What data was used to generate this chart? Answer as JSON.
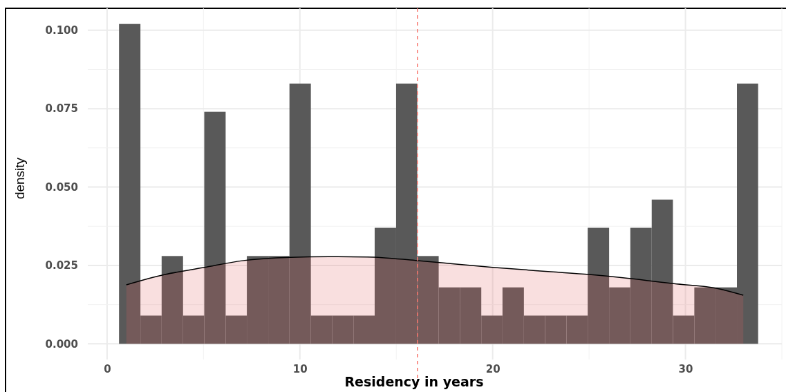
{
  "chart_data": {
    "type": "histogram",
    "xlabel": "Residency in years",
    "ylabel": "density",
    "bins": [
      0.62,
      1.73,
      2.83,
      3.94,
      5.04,
      6.15,
      7.25,
      8.36,
      9.46,
      10.57,
      11.67,
      12.78,
      13.88,
      14.99,
      16.09,
      17.2,
      18.3,
      19.41,
      20.51,
      21.62,
      22.72,
      23.83,
      24.93,
      26.04,
      27.14,
      28.25,
      29.35,
      30.46,
      31.56,
      32.67,
      33.77
    ],
    "values": [
      0.102,
      0.009,
      0.028,
      0.009,
      0.074,
      0.009,
      0.028,
      0.028,
      0.083,
      0.009,
      0.009,
      0.009,
      0.037,
      0.083,
      0.028,
      0.018,
      0.018,
      0.009,
      0.018,
      0.009,
      0.009,
      0.009,
      0.037,
      0.018,
      0.037,
      0.046,
      0.009,
      0.018,
      0.018,
      0.083
    ],
    "color": "#595959",
    "series": [
      {
        "type": "area",
        "color": "#e06060",
        "x": [
          1,
          3,
          5,
          7,
          9.5,
          11.5,
          13.5,
          16,
          18,
          20,
          23,
          25,
          27,
          29.4,
          31.6,
          33
        ],
        "values": [
          0.0188,
          0.0221,
          0.0243,
          0.0265,
          0.0276,
          0.0278,
          0.0277,
          0.0266,
          0.0255,
          0.0244,
          0.023,
          0.0221,
          0.0209,
          0.0192,
          0.0177,
          0.0155
        ]
      }
    ],
    "xlim": [
      -1,
      35
    ],
    "xticks": [
      0,
      10,
      20,
      30
    ],
    "ylim": [
      -0.005,
      0.107
    ],
    "yticks": [
      {
        "value": 0,
        "label": "0.000"
      },
      {
        "value": 0.025,
        "label": "0.025"
      },
      {
        "value": 0.05,
        "label": "0.050"
      },
      {
        "value": 0.075,
        "label": "0.075"
      },
      {
        "value": 0.1,
        "label": "0.100"
      }
    ],
    "ref_lines": [
      {
        "axis": "x",
        "value": 16.1,
        "color": "#f8766d",
        "line_style": "dashed"
      }
    ],
    "grid": true
  }
}
